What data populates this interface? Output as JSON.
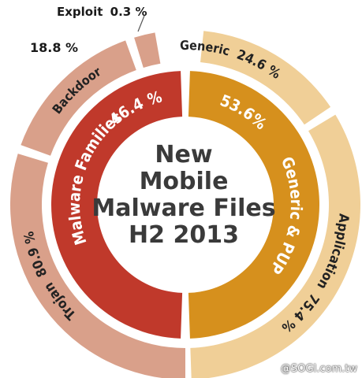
{
  "chart_data": {
    "type": "pie",
    "title": "New Mobile Malware Files H2 2013",
    "title_lines": [
      "New",
      "Mobile",
      "Malware Files",
      "H2 2013"
    ],
    "inner_ring": [
      {
        "name": "Malware Families",
        "value": 46.4,
        "label": "Malware Families",
        "value_label": "46.4 %",
        "color": "#c0392b"
      },
      {
        "name": "Generic & PUP",
        "value": 53.6,
        "label": "Generic & PUP",
        "value_label": "53.6%",
        "color": "#d6901d"
      }
    ],
    "outer_ring": [
      {
        "name": "Backdoor",
        "value": 18.8,
        "label": "Backdoor",
        "value_label": "18.8 %",
        "color": "#d9a08a"
      },
      {
        "name": "Exploit",
        "value": 0.3,
        "label": "Exploit",
        "value_label": "0.3 %",
        "color": "#d9a08a"
      },
      {
        "name": "Generic",
        "value": 24.6,
        "label": "Generic",
        "value_label": "24.6 %",
        "color": "#f0cf97"
      },
      {
        "name": "Application",
        "value": 75.4,
        "label": "Application",
        "value_label": "75.4 %",
        "color": "#f0cf97"
      },
      {
        "name": "Trojan",
        "value": 80.9,
        "label": "Trojan",
        "value_label": "80.9 %",
        "color": "#d9a08a"
      }
    ]
  },
  "watermark": "@SOGI.com.tw"
}
